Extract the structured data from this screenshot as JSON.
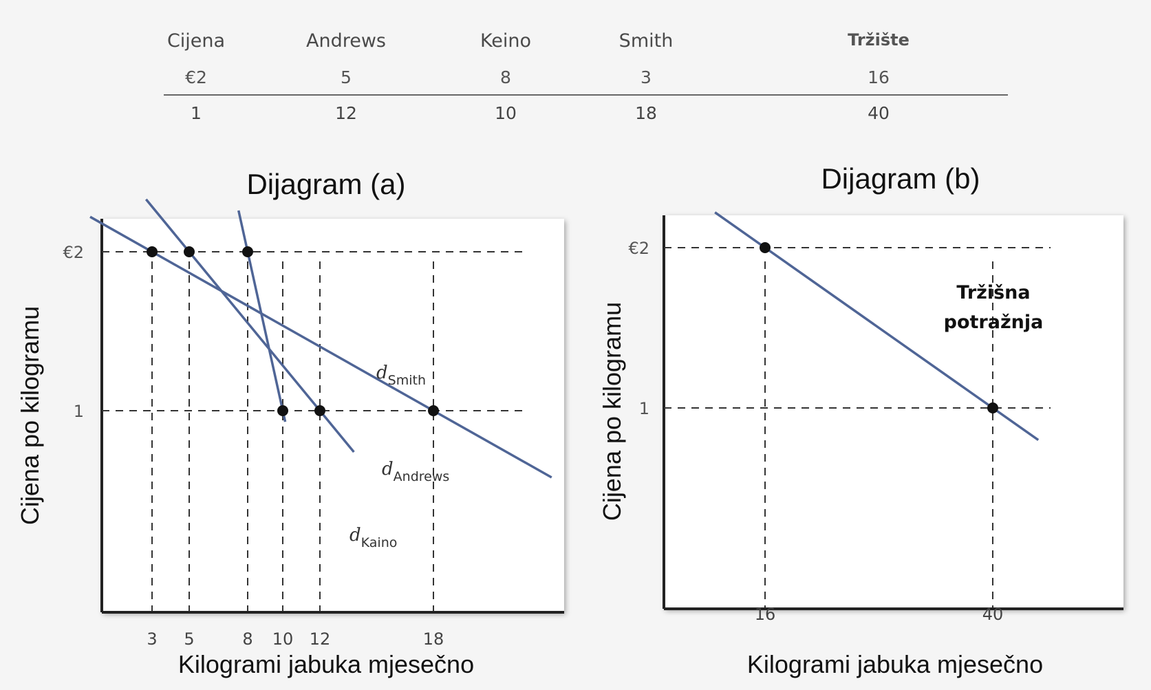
{
  "table": {
    "headers": [
      "Cijena",
      "Andrews",
      "Keino",
      "Smith",
      "Tržište"
    ],
    "rows": [
      [
        "€2",
        "5",
        "8",
        "3",
        "16"
      ],
      [
        "1",
        "12",
        "10",
        "18",
        "40"
      ]
    ]
  },
  "chart_data": [
    {
      "type": "line",
      "title": "Dijagram (a)",
      "xlabel": "Kilogrami jabuka mjesečno",
      "ylabel": "Cijena po kilogramu",
      "x_ticks": [
        "3",
        "5",
        "8",
        "10",
        "12",
        "18"
      ],
      "y_ticks": [
        "€2",
        "1"
      ],
      "series": [
        {
          "name": "Smith",
          "label_main": "d",
          "label_sub": "Smith",
          "points": [
            [
              3,
              2
            ],
            [
              18,
              1
            ]
          ]
        },
        {
          "name": "Andrews",
          "label_main": "d",
          "label_sub": "Andrews",
          "points": [
            [
              5,
              2
            ],
            [
              12,
              1
            ]
          ]
        },
        {
          "name": "Kaino",
          "label_main": "d",
          "label_sub": "Kaino",
          "points": [
            [
              8,
              2
            ],
            [
              10,
              1
            ]
          ]
        }
      ],
      "dashed_guides": true,
      "color": "#4f6596"
    },
    {
      "type": "line",
      "title": "Dijagram (b)",
      "xlabel": "Kilogrami jabuka mjesečno",
      "ylabel": "Cijena po kilogramu",
      "x_ticks": [
        "16",
        "40"
      ],
      "y_ticks": [
        "€2",
        "1"
      ],
      "annotation": [
        "Tržišna",
        "potražnja"
      ],
      "series": [
        {
          "name": "Tržišna potražnja",
          "points": [
            [
              16,
              2
            ],
            [
              40,
              1
            ]
          ]
        }
      ],
      "dashed_guides": true,
      "color": "#4f6596"
    }
  ]
}
